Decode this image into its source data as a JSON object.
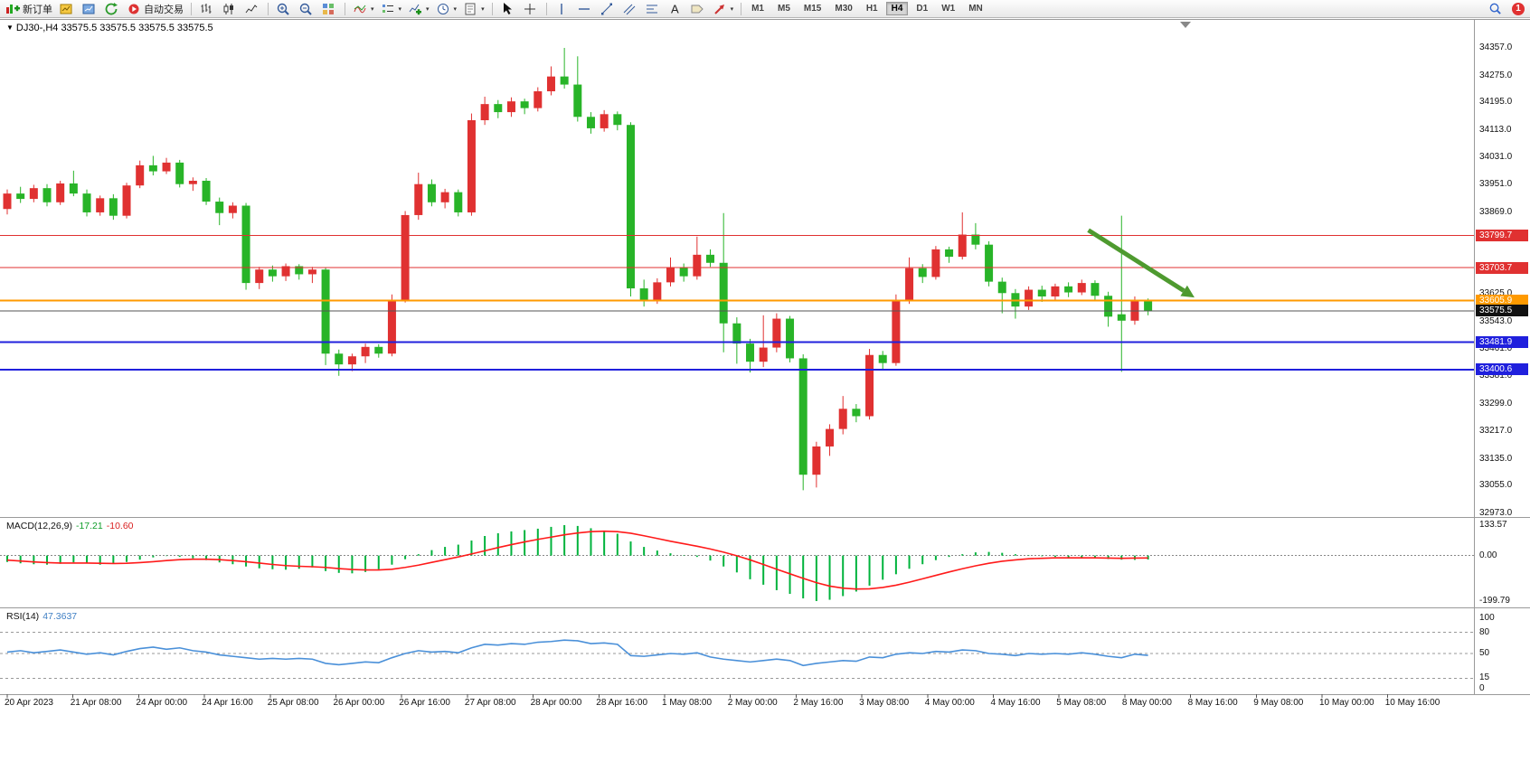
{
  "toolbar": {
    "buttons": [
      {
        "name": "new-order",
        "icon": "new-order-icon",
        "label": "新订单"
      },
      {
        "name": "chart-profile",
        "icon": "chart-profile-icon"
      },
      {
        "name": "market-watch",
        "icon": "market-watch-icon"
      },
      {
        "name": "refresh",
        "icon": "refresh-icon"
      },
      {
        "name": "auto-trading",
        "icon": "auto-trading-icon",
        "label": "自动交易"
      },
      {
        "name": "sep"
      },
      {
        "name": "bar-chart-mode",
        "icon": "bar-chart-icon"
      },
      {
        "name": "candle-mode",
        "icon": "candlestick-icon"
      },
      {
        "name": "line-mode",
        "icon": "line-chart-icon"
      },
      {
        "name": "sep"
      },
      {
        "name": "zoom-in",
        "icon": "zoom-in-icon"
      },
      {
        "name": "zoom-out",
        "icon": "zoom-out-icon"
      },
      {
        "name": "tile-windows",
        "icon": "tile-windows-icon"
      },
      {
        "name": "sep"
      },
      {
        "name": "indicators",
        "icon": "indicators-icon",
        "caret": true
      },
      {
        "name": "objects-list",
        "icon": "objects-list-icon",
        "caret": true
      },
      {
        "name": "add-indicator",
        "icon": "add-indicator-icon",
        "caret": true
      },
      {
        "name": "periods",
        "icon": "clock-icon",
        "caret": true
      },
      {
        "name": "templates",
        "icon": "template-icon",
        "caret": true
      },
      {
        "name": "sep"
      },
      {
        "name": "cursor",
        "icon": "cursor-icon"
      },
      {
        "name": "crosshair",
        "icon": "crosshair-icon"
      },
      {
        "name": "sep"
      },
      {
        "name": "vertical-line",
        "icon": "vertical-line-icon"
      },
      {
        "name": "horizontal-line",
        "icon": "horizontal-line-icon"
      },
      {
        "name": "trendline",
        "icon": "trendline-icon"
      },
      {
        "name": "channel",
        "icon": "channel-icon"
      },
      {
        "name": "fibonacci",
        "icon": "fibonacci-icon"
      },
      {
        "name": "text-tool",
        "icon": "text-icon"
      },
      {
        "name": "label-tool",
        "icon": "label-icon"
      },
      {
        "name": "shapes",
        "icon": "arrows-icon",
        "caret": true
      },
      {
        "name": "sep"
      }
    ],
    "timeframes": [
      "M1",
      "M5",
      "M15",
      "M30",
      "H1",
      "H4",
      "D1",
      "W1",
      "MN"
    ],
    "active_timeframe": "H4",
    "notification_count": "1"
  },
  "chart_data": {
    "type": "candlestick",
    "symbol": "DJ30-",
    "timeframe": "H4",
    "ohlc_title": "DJ30-,H4 33575.5 33575.5 33575.5 33575.5",
    "colors": {
      "up": "#e03131",
      "down": "#28b428",
      "macd_hist": "#00b33c",
      "macd_signal": "#ff1a1a",
      "rsi_line": "#4a90d9",
      "arrow": "#4e9a2f"
    },
    "price_axis_ticks": [
      34357.0,
      34275.0,
      34195.0,
      34113.0,
      34031.0,
      33951.0,
      33869.0,
      33787.0,
      33705.0,
      33625.0,
      33543.0,
      33461.0,
      33381.0,
      33299.0,
      33217.0,
      33135.0,
      33055.0,
      32973.0
    ],
    "time_labels": [
      "20 Apr 2023",
      "21 Apr 08:00",
      "24 Apr 00:00",
      "24 Apr 16:00",
      "25 Apr 08:00",
      "26 Apr 00:00",
      "26 Apr 16:00",
      "27 Apr 08:00",
      "28 Apr 00:00",
      "28 Apr 16:00",
      "1 May 08:00",
      "2 May 00:00",
      "2 May 16:00",
      "3 May 08:00",
      "4 May 00:00",
      "4 May 16:00",
      "5 May 08:00",
      "8 May 00:00",
      "8 May 16:00",
      "9 May 08:00",
      "10 May 00:00",
      "10 May 16:00"
    ],
    "hlines": [
      {
        "price": 33799.7,
        "color": "#e03131",
        "width": 1,
        "tag": "33799.7",
        "tag_bg": "#e03131"
      },
      {
        "price": 33703.7,
        "color": "#e03131",
        "width": 1,
        "tag": "33703.7",
        "tag_bg": "#e03131"
      },
      {
        "price": 33605.9,
        "color": "#ff9a00",
        "width": 2,
        "tag": "33605.9",
        "tag_bg": "#ff9a00"
      },
      {
        "price": 33575.5,
        "color": "#555555",
        "width": 1,
        "tag": "33575.5",
        "tag_bg": "#111111",
        "is_price": true
      },
      {
        "price": 33481.9,
        "color": "#2020dd",
        "width": 2,
        "tag": "33481.9",
        "tag_bg": "#2020dd"
      },
      {
        "price": 33400.6,
        "color": "#2020dd",
        "width": 2,
        "tag": "33400.6",
        "tag_bg": "#2020dd"
      }
    ],
    "annotation_arrow": {
      "from_bar": 81.5,
      "from_price": 33815,
      "to_bar": 89.5,
      "to_price": 33615
    },
    "candles": [
      [
        33878,
        33936,
        33862,
        33924
      ],
      [
        33924,
        33944,
        33896,
        33908
      ],
      [
        33908,
        33950,
        33898,
        33940
      ],
      [
        33940,
        33952,
        33886,
        33898
      ],
      [
        33898,
        33962,
        33890,
        33954
      ],
      [
        33954,
        33992,
        33916,
        33924
      ],
      [
        33924,
        33936,
        33856,
        33868
      ],
      [
        33868,
        33918,
        33858,
        33910
      ],
      [
        33910,
        33922,
        33846,
        33858
      ],
      [
        33858,
        33956,
        33850,
        33948
      ],
      [
        33948,
        34022,
        33940,
        34008
      ],
      [
        34008,
        34036,
        33978,
        33990
      ],
      [
        33990,
        34030,
        33982,
        34016
      ],
      [
        34016,
        34024,
        33942,
        33952
      ],
      [
        33952,
        33972,
        33932,
        33962
      ],
      [
        33962,
        33970,
        33890,
        33900
      ],
      [
        33900,
        33912,
        33830,
        33866
      ],
      [
        33866,
        33898,
        33850,
        33888
      ],
      [
        33888,
        33896,
        33638,
        33658
      ],
      [
        33658,
        33706,
        33640,
        33698
      ],
      [
        33698,
        33710,
        33662,
        33678
      ],
      [
        33678,
        33716,
        33664,
        33708
      ],
      [
        33708,
        33714,
        33668,
        33684
      ],
      [
        33684,
        33706,
        33658,
        33698
      ],
      [
        33698,
        33704,
        33414,
        33448
      ],
      [
        33448,
        33460,
        33382,
        33416
      ],
      [
        33416,
        33448,
        33396,
        33440
      ],
      [
        33440,
        33478,
        33420,
        33468
      ],
      [
        33468,
        33476,
        33436,
        33448
      ],
      [
        33448,
        33624,
        33440,
        33608
      ],
      [
        33608,
        33872,
        33600,
        33860
      ],
      [
        33860,
        33986,
        33846,
        33952
      ],
      [
        33952,
        33966,
        33886,
        33898
      ],
      [
        33898,
        33938,
        33880,
        33928
      ],
      [
        33928,
        33936,
        33856,
        33868
      ],
      [
        33868,
        34162,
        33858,
        34142
      ],
      [
        34142,
        34212,
        34128,
        34190
      ],
      [
        34190,
        34202,
        34148,
        34166
      ],
      [
        34166,
        34210,
        34152,
        34198
      ],
      [
        34198,
        34206,
        34160,
        34178
      ],
      [
        34178,
        34240,
        34168,
        34228
      ],
      [
        34228,
        34302,
        34216,
        34272
      ],
      [
        34272,
        34357,
        34236,
        34248
      ],
      [
        34248,
        34332,
        34138,
        34152
      ],
      [
        34152,
        34166,
        34102,
        34118
      ],
      [
        34118,
        34172,
        34108,
        34160
      ],
      [
        34160,
        34168,
        34112,
        34128
      ],
      [
        34128,
        34136,
        33618,
        33642
      ],
      [
        33642,
        33668,
        33588,
        33608
      ],
      [
        33608,
        33672,
        33596,
        33660
      ],
      [
        33660,
        33734,
        33648,
        33704
      ],
      [
        33704,
        33716,
        33662,
        33678
      ],
      [
        33678,
        33796,
        33668,
        33742
      ],
      [
        33742,
        33758,
        33706,
        33718
      ],
      [
        33718,
        33866,
        33452,
        33538
      ],
      [
        33538,
        33556,
        33418,
        33478
      ],
      [
        33478,
        33492,
        33392,
        33424
      ],
      [
        33424,
        33562,
        33408,
        33466
      ],
      [
        33466,
        33568,
        33452,
        33552
      ],
      [
        33552,
        33560,
        33422,
        33434
      ],
      [
        33434,
        33446,
        33042,
        33088
      ],
      [
        33088,
        33186,
        33050,
        33172
      ],
      [
        33172,
        33238,
        33144,
        33224
      ],
      [
        33224,
        33322,
        33208,
        33284
      ],
      [
        33284,
        33298,
        33244,
        33262
      ],
      [
        33262,
        33462,
        33252,
        33444
      ],
      [
        33444,
        33456,
        33398,
        33420
      ],
      [
        33420,
        33624,
        33412,
        33604
      ],
      [
        33604,
        33734,
        33596,
        33702
      ],
      [
        33702,
        33714,
        33658,
        33676
      ],
      [
        33676,
        33768,
        33668,
        33758
      ],
      [
        33758,
        33766,
        33718,
        33736
      ],
      [
        33736,
        33868,
        33728,
        33802
      ],
      [
        33802,
        33836,
        33758,
        33772
      ],
      [
        33772,
        33782,
        33648,
        33662
      ],
      [
        33662,
        33674,
        33568,
        33628
      ],
      [
        33628,
        33640,
        33552,
        33588
      ],
      [
        33588,
        33648,
        33578,
        33638
      ],
      [
        33638,
        33650,
        33602,
        33618
      ],
      [
        33618,
        33656,
        33608,
        33648
      ],
      [
        33648,
        33660,
        33616,
        33630
      ],
      [
        33630,
        33668,
        33622,
        33658
      ],
      [
        33658,
        33666,
        33606,
        33620
      ],
      [
        33620,
        33632,
        33528,
        33558
      ],
      [
        33565,
        33858,
        33394,
        33546
      ],
      [
        33546,
        33618,
        33534,
        33606
      ],
      [
        33606,
        33612,
        33562,
        33575.5
      ]
    ],
    "macd": {
      "name": "MACD(12,26,9)",
      "value_main": "-17.21",
      "value_signal": "-10.60",
      "scale_ticks": [
        133.57,
        0,
        -199.79
      ],
      "max": 133.57,
      "min": -199.79,
      "histogram": [
        -28,
        -34,
        -38,
        -40,
        -36,
        -30,
        -34,
        -40,
        -36,
        -28,
        -18,
        -8,
        -2,
        -6,
        -12,
        -20,
        -30,
        -38,
        -48,
        -56,
        -60,
        -62,
        -58,
        -52,
        -68,
        -76,
        -78,
        -72,
        -60,
        -40,
        -16,
        6,
        24,
        38,
        48,
        66,
        86,
        98,
        106,
        112,
        118,
        126,
        133.57,
        130,
        120,
        108,
        96,
        62,
        38,
        22,
        10,
        2,
        -6,
        -22,
        -48,
        -74,
        -104,
        -128,
        -152,
        -168,
        -188,
        -199.79,
        -194,
        -178,
        -158,
        -132,
        -106,
        -82,
        -58,
        -38,
        -20,
        -6,
        6,
        14,
        16,
        12,
        6,
        2,
        -3,
        -6,
        -9,
        -11,
        -13,
        -15,
        -18,
        -19,
        -17.21
      ],
      "signal": [
        -20,
        -24,
        -28,
        -31,
        -33,
        -33,
        -33,
        -34,
        -35,
        -34,
        -31,
        -27,
        -22,
        -18,
        -16,
        -16,
        -18,
        -22,
        -27,
        -33,
        -39,
        -44,
        -47,
        -49,
        -52,
        -57,
        -61,
        -63,
        -63,
        -60,
        -52,
        -42,
        -30,
        -18,
        -6,
        7,
        21,
        35,
        48,
        60,
        71,
        81,
        91,
        99,
        105,
        107,
        105,
        98,
        87,
        75,
        63,
        52,
        41,
        29,
        15,
        -1,
        -19,
        -39,
        -60,
        -80,
        -100,
        -119,
        -134,
        -143,
        -147,
        -146,
        -140,
        -130,
        -117,
        -102,
        -87,
        -72,
        -58,
        -45,
        -34,
        -25,
        -19,
        -14,
        -12,
        -10,
        -10,
        -10,
        -10,
        -11,
        -12,
        -11,
        -10.6
      ]
    },
    "rsi": {
      "name": "RSI(14)",
      "value": "47.3637",
      "scale_ticks": [
        100,
        80,
        50,
        15,
        0
      ],
      "levels": [
        80,
        50,
        15
      ],
      "max": 100,
      "min": 0,
      "values": [
        52,
        54,
        51,
        53,
        55,
        52,
        49,
        51,
        48,
        53,
        57,
        59,
        56,
        58,
        54,
        52,
        48,
        46,
        44,
        42,
        43,
        42,
        43,
        42,
        36,
        34,
        36,
        38,
        37,
        44,
        50,
        54,
        52,
        53,
        51,
        58,
        63,
        62,
        64,
        63,
        66,
        67,
        69,
        68,
        64,
        65,
        63,
        47,
        46,
        48,
        50,
        49,
        51,
        45,
        42,
        40,
        38,
        40,
        42,
        40,
        33,
        36,
        38,
        40,
        39,
        45,
        44,
        49,
        51,
        50,
        53,
        52,
        55,
        54,
        50,
        49,
        47,
        50,
        49,
        50,
        49,
        51,
        49,
        46,
        44,
        49,
        47.36
      ]
    }
  }
}
